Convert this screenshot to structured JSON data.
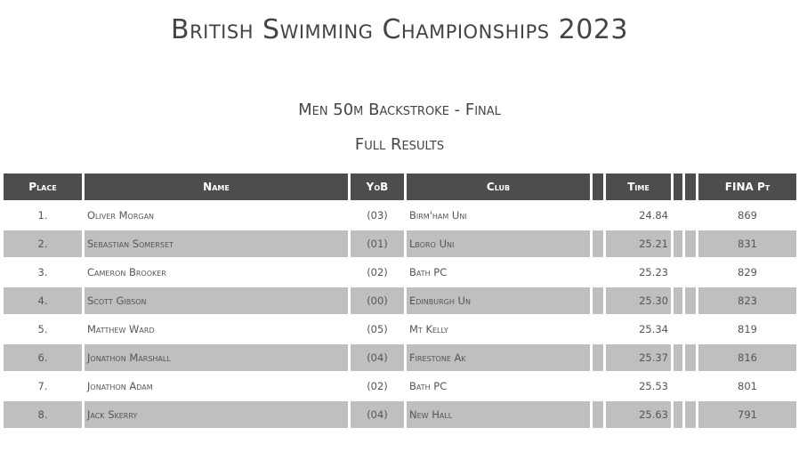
{
  "title": "British Swimming Championships 2023",
  "event": "Men 50m Backstroke - Final",
  "subtitle": "Full Results",
  "headers": {
    "place": "Place",
    "name": "Name",
    "yob": "YoB",
    "club": "Club",
    "time": "Time",
    "fina": "FINA Pt"
  },
  "rows": [
    {
      "place": "1.",
      "name": "Oliver Morgan",
      "yob": "(03)",
      "club": "Birm'ham Uni",
      "time": "24.84",
      "fina": "869"
    },
    {
      "place": "2.",
      "name": "Sebastian Somerset",
      "yob": "(01)",
      "club": "Lboro Uni",
      "time": "25.21",
      "fina": "831"
    },
    {
      "place": "3.",
      "name": "Cameron Brooker",
      "yob": "(02)",
      "club": "Bath PC",
      "time": "25.23",
      "fina": "829"
    },
    {
      "place": "4.",
      "name": "Scott Gibson",
      "yob": "(00)",
      "club": "Edinburgh Un",
      "time": "25.30",
      "fina": "823"
    },
    {
      "place": "5.",
      "name": "Matthew Ward",
      "yob": "(05)",
      "club": "Mt Kelly",
      "time": "25.34",
      "fina": "819"
    },
    {
      "place": "6.",
      "name": "Jonathon Marshall",
      "yob": "(04)",
      "club": "Firestone Ak",
      "time": "25.37",
      "fina": "816"
    },
    {
      "place": "7.",
      "name": "Jonathon Adam",
      "yob": "(02)",
      "club": "Bath PC",
      "time": "25.53",
      "fina": "801"
    },
    {
      "place": "8.",
      "name": "Jack Skerry",
      "yob": "(04)",
      "club": "New Hall",
      "time": "25.63",
      "fina": "791"
    }
  ]
}
